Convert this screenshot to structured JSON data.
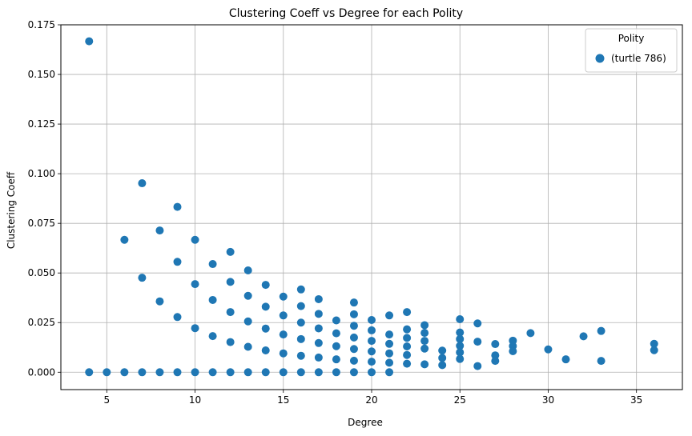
{
  "chart_data": {
    "type": "scatter",
    "title": "Clustering Coeff vs Degree for each Polity",
    "xlabel": "Degree",
    "ylabel": "Clustering Coeff",
    "xlim": [
      2.4,
      37.6
    ],
    "ylim": [
      -0.00875,
      0.175
    ],
    "xticks": [
      5,
      10,
      15,
      20,
      25,
      30,
      35
    ],
    "yticks": [
      0.0,
      0.025,
      0.05,
      0.075,
      0.1,
      0.125,
      0.15,
      0.175
    ],
    "ytick_labels": [
      "0.000",
      "0.025",
      "0.050",
      "0.075",
      "0.100",
      "0.125",
      "0.150",
      "0.175"
    ],
    "grid": true,
    "legend": {
      "title": "Polity",
      "placement": "top-right"
    },
    "series": [
      {
        "name": "(turtle 786)",
        "color": "#1f77b4",
        "points": [
          [
            4,
            0.1667
          ],
          [
            4,
            0.0
          ],
          [
            5,
            0.0
          ],
          [
            6,
            0.0667
          ],
          [
            6,
            0.0
          ],
          [
            7,
            0.0952
          ],
          [
            7,
            0.0476
          ],
          [
            7,
            0.0
          ],
          [
            8,
            0.0714
          ],
          [
            8,
            0.0357
          ],
          [
            8,
            0.0
          ],
          [
            9,
            0.0833
          ],
          [
            9,
            0.0556
          ],
          [
            9,
            0.0278
          ],
          [
            9,
            0.0
          ],
          [
            10,
            0.0667
          ],
          [
            10,
            0.0444
          ],
          [
            10,
            0.0222
          ],
          [
            10,
            0.0
          ],
          [
            11,
            0.0545
          ],
          [
            11,
            0.0364
          ],
          [
            11,
            0.0182
          ],
          [
            11,
            0.0
          ],
          [
            12,
            0.0606
          ],
          [
            12,
            0.0455
          ],
          [
            12,
            0.0303
          ],
          [
            12,
            0.0152
          ],
          [
            12,
            0.0
          ],
          [
            13,
            0.0513
          ],
          [
            13,
            0.0385
          ],
          [
            13,
            0.0256
          ],
          [
            13,
            0.0128
          ],
          [
            13,
            0.0
          ],
          [
            14,
            0.044
          ],
          [
            14,
            0.033
          ],
          [
            14,
            0.022
          ],
          [
            14,
            0.011
          ],
          [
            14,
            0.0
          ],
          [
            15,
            0.0381
          ],
          [
            15,
            0.0286
          ],
          [
            15,
            0.019
          ],
          [
            15,
            0.0095
          ],
          [
            15,
            0.0
          ],
          [
            16,
            0.0417
          ],
          [
            16,
            0.0333
          ],
          [
            16,
            0.025
          ],
          [
            16,
            0.0167
          ],
          [
            16,
            0.0083
          ],
          [
            16,
            0.0
          ],
          [
            17,
            0.0368
          ],
          [
            17,
            0.0294
          ],
          [
            17,
            0.0221
          ],
          [
            17,
            0.0147
          ],
          [
            17,
            0.0074
          ],
          [
            17,
            0.0
          ],
          [
            18,
            0.0261
          ],
          [
            18,
            0.0196
          ],
          [
            18,
            0.0131
          ],
          [
            18,
            0.0065
          ],
          [
            18,
            0.0
          ],
          [
            19,
            0.0351
          ],
          [
            19,
            0.0292
          ],
          [
            19,
            0.0234
          ],
          [
            19,
            0.0175
          ],
          [
            19,
            0.0117
          ],
          [
            19,
            0.0058
          ],
          [
            19,
            0.0
          ],
          [
            20,
            0.0263
          ],
          [
            20,
            0.0211
          ],
          [
            20,
            0.0158
          ],
          [
            20,
            0.0105
          ],
          [
            20,
            0.0053
          ],
          [
            20,
            0.0
          ],
          [
            21,
            0.0286
          ],
          [
            21,
            0.019
          ],
          [
            21,
            0.0143
          ],
          [
            21,
            0.0095
          ],
          [
            21,
            0.0048
          ],
          [
            21,
            0.0
          ],
          [
            22,
            0.0303
          ],
          [
            22,
            0.0216
          ],
          [
            22,
            0.0173
          ],
          [
            22,
            0.013
          ],
          [
            22,
            0.0087
          ],
          [
            22,
            0.0043
          ],
          [
            23,
            0.0237
          ],
          [
            23,
            0.0198
          ],
          [
            23,
            0.0158
          ],
          [
            23,
            0.0119
          ],
          [
            23,
            0.004
          ],
          [
            24,
            0.0109
          ],
          [
            24,
            0.0072
          ],
          [
            24,
            0.0036
          ],
          [
            25,
            0.0267
          ],
          [
            25,
            0.02
          ],
          [
            25,
            0.0167
          ],
          [
            25,
            0.0133
          ],
          [
            25,
            0.01
          ],
          [
            25,
            0.0067
          ],
          [
            26,
            0.0246
          ],
          [
            26,
            0.0154
          ],
          [
            26,
            0.0031
          ],
          [
            27,
            0.0142
          ],
          [
            27,
            0.0085
          ],
          [
            27,
            0.0057
          ],
          [
            28,
            0.0159
          ],
          [
            28,
            0.0132
          ],
          [
            28,
            0.0106
          ],
          [
            29,
            0.0197
          ],
          [
            30,
            0.0115
          ],
          [
            31,
            0.0065
          ],
          [
            32,
            0.0181
          ],
          [
            33,
            0.0208
          ],
          [
            33,
            0.0057
          ],
          [
            36,
            0.0143
          ],
          [
            36,
            0.0111
          ]
        ]
      }
    ]
  }
}
